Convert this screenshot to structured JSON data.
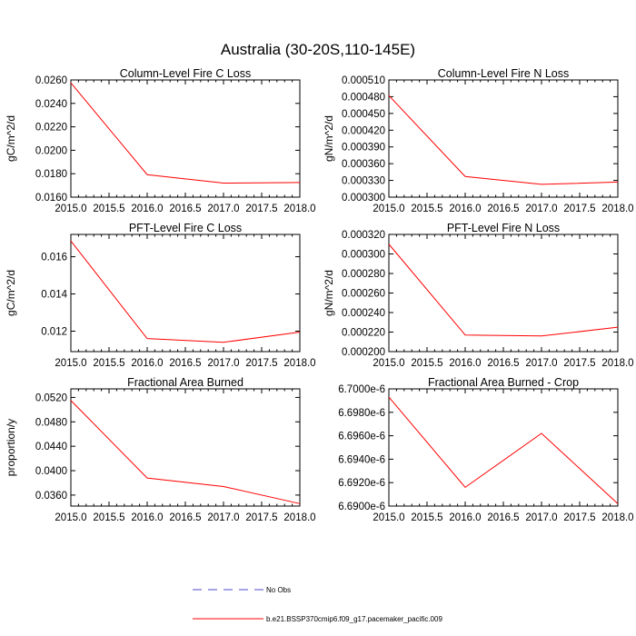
{
  "figure": {
    "title": "Australia (30-20S,110-145E)"
  },
  "chart_data": [
    {
      "type": "line",
      "title": "Column-Level Fire C Loss",
      "xlabel": "",
      "ylabel": "gC/m^2/d",
      "xlim": [
        2015.0,
        2018.0
      ],
      "ylim": [
        0.016,
        0.026
      ],
      "xticks": [
        "2015.0",
        "2015.5",
        "2016.0",
        "2016.5",
        "2017.0",
        "2017.5",
        "2018.0"
      ],
      "yticks": [
        "0.0160",
        "0.0180",
        "0.0200",
        "0.0220",
        "0.0240",
        "0.0260"
      ],
      "ytick_values": [
        0.016,
        0.018,
        0.02,
        0.022,
        0.024,
        0.026
      ],
      "x": [
        2015,
        2016,
        2017,
        2018
      ],
      "series": [
        {
          "values": [
            0.02575,
            0.01792,
            0.0172,
            0.01725
          ],
          "color": "#ff0000"
        }
      ]
    },
    {
      "type": "line",
      "title": "Column-Level Fire N Loss",
      "xlabel": "",
      "ylabel": "gN/m^2/d",
      "xlim": [
        2015.0,
        2018.0
      ],
      "ylim": [
        0.0003,
        0.00051
      ],
      "xticks": [
        "2015.0",
        "2015.5",
        "2016.0",
        "2016.5",
        "2017.0",
        "2017.5",
        "2018.0"
      ],
      "yticks": [
        "0.000300",
        "0.000330",
        "0.000360",
        "0.000390",
        "0.000420",
        "0.000450",
        "0.000480",
        "0.000510"
      ],
      "ytick_values": [
        0.0003,
        0.00033,
        0.00036,
        0.00039,
        0.00042,
        0.00045,
        0.00048,
        0.00051
      ],
      "x": [
        2015,
        2016,
        2017,
        2018
      ],
      "series": [
        {
          "values": [
            0.000482,
            0.000337,
            0.000323,
            0.000327
          ],
          "color": "#ff0000"
        }
      ]
    },
    {
      "type": "line",
      "title": "PFT-Level Fire C Loss",
      "xlabel": "",
      "ylabel": "gC/m^2/d",
      "xlim": [
        2015.0,
        2018.0
      ],
      "ylim": [
        0.0109,
        0.0172
      ],
      "xticks": [
        "2015.0",
        "2015.5",
        "2016.0",
        "2016.5",
        "2017.0",
        "2017.5",
        "2018.0"
      ],
      "yticks": [
        "0.012",
        "0.014",
        "0.016"
      ],
      "ytick_values": [
        0.012,
        0.014,
        0.016
      ],
      "x": [
        2015,
        2016,
        2017,
        2018
      ],
      "series": [
        {
          "values": [
            0.01685,
            0.0116,
            0.0114,
            0.01195
          ],
          "color": "#ff0000"
        }
      ]
    },
    {
      "type": "line",
      "title": "PFT-Level Fire N Loss",
      "xlabel": "",
      "ylabel": "gN/m^2/d",
      "xlim": [
        2015.0,
        2018.0
      ],
      "ylim": [
        0.0002,
        0.00032
      ],
      "xticks": [
        "2015.0",
        "2015.5",
        "2016.0",
        "2016.5",
        "2017.0",
        "2017.5",
        "2018.0"
      ],
      "yticks": [
        "0.000200",
        "0.000220",
        "0.000240",
        "0.000260",
        "0.000280",
        "0.000300",
        "0.000320"
      ],
      "ytick_values": [
        0.0002,
        0.00022,
        0.00024,
        0.00026,
        0.00028,
        0.0003,
        0.00032
      ],
      "x": [
        2015,
        2016,
        2017,
        2018
      ],
      "series": [
        {
          "values": [
            0.00031,
            0.000217,
            0.000216,
            0.000225
          ],
          "color": "#ff0000"
        }
      ]
    },
    {
      "type": "line",
      "title": "Fractional Area Burned",
      "xlabel": "",
      "ylabel": "proportion/y",
      "xlim": [
        2015.0,
        2018.0
      ],
      "ylim": [
        0.0342,
        0.0534
      ],
      "xticks": [
        "2015.0",
        "2015.5",
        "2016.0",
        "2016.5",
        "2017.0",
        "2017.5",
        "2018.0"
      ],
      "yticks": [
        "0.0360",
        "0.0400",
        "0.0440",
        "0.0480",
        "0.0520"
      ],
      "ytick_values": [
        0.036,
        0.04,
        0.044,
        0.048,
        0.052
      ],
      "x": [
        2015,
        2016,
        2017,
        2018
      ],
      "series": [
        {
          "values": [
            0.0515,
            0.0388,
            0.0374,
            0.0346
          ],
          "color": "#ff0000"
        }
      ]
    },
    {
      "type": "line",
      "title": "Fractional Area Burned - Crop",
      "xlabel": "",
      "ylabel": "",
      "xlim": [
        2015.0,
        2018.0
      ],
      "ylim": [
        6.69e-06,
        6.7e-06
      ],
      "xticks": [
        "2015.0",
        "2015.5",
        "2016.0",
        "2016.5",
        "2017.0",
        "2017.5",
        "2018.0"
      ],
      "yticks": [
        "6.6900e-6",
        "6.6920e-6",
        "6.6940e-6",
        "6.6960e-6",
        "6.6980e-6",
        "6.7000e-6"
      ],
      "ytick_values": [
        6.69e-06,
        6.692e-06,
        6.694e-06,
        6.696e-06,
        6.698e-06,
        6.7e-06
      ],
      "x": [
        2015,
        2016,
        2017,
        2018
      ],
      "series": [
        {
          "values": [
            6.6993e-06,
            6.6916e-06,
            6.6962e-06,
            6.6902e-06
          ],
          "color": "#ff0000"
        }
      ]
    }
  ],
  "legend": {
    "position": "bottom-center",
    "entries": [
      {
        "label": "No Obs",
        "color": "#4b4bc8",
        "style": "dashed"
      },
      {
        "label": "b.e21.BSSP370cmip6.f09_g17.pacemaker_pacific.009",
        "color": "#ff0000",
        "style": "solid"
      }
    ]
  }
}
